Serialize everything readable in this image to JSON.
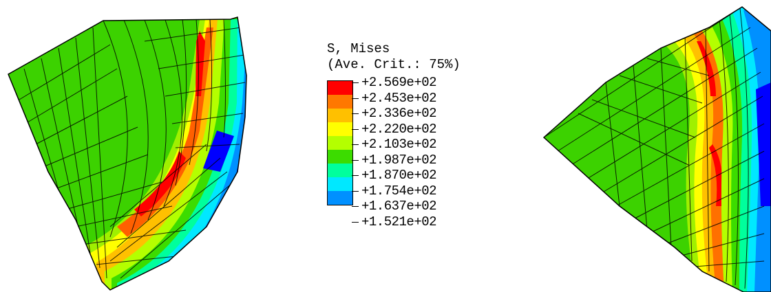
{
  "legend": {
    "title": "S, Mises",
    "subtitle": "(Ave. Crit.: 75%)",
    "entries": [
      {
        "label": "+2.569e+02",
        "color": "#ff0000"
      },
      {
        "label": "+2.453e+02",
        "color": "#ff7800"
      },
      {
        "label": "+2.336e+02",
        "color": "#ffc000"
      },
      {
        "label": "+2.220e+02",
        "color": "#ffff00"
      },
      {
        "label": "+2.103e+02",
        "color": "#b4ff00"
      },
      {
        "label": "+1.987e+02",
        "color": "#3cdc00"
      },
      {
        "label": "+1.870e+02",
        "color": "#00ff9c"
      },
      {
        "label": "+1.754e+02",
        "color": "#00e8ff"
      },
      {
        "label": "+1.637e+02",
        "color": "#0090ff"
      },
      {
        "label": "+1.521e+02",
        "color": "#0000ff"
      }
    ]
  },
  "colors": {
    "mesh_base": "#3cd200",
    "mesh_line": "#000000"
  }
}
